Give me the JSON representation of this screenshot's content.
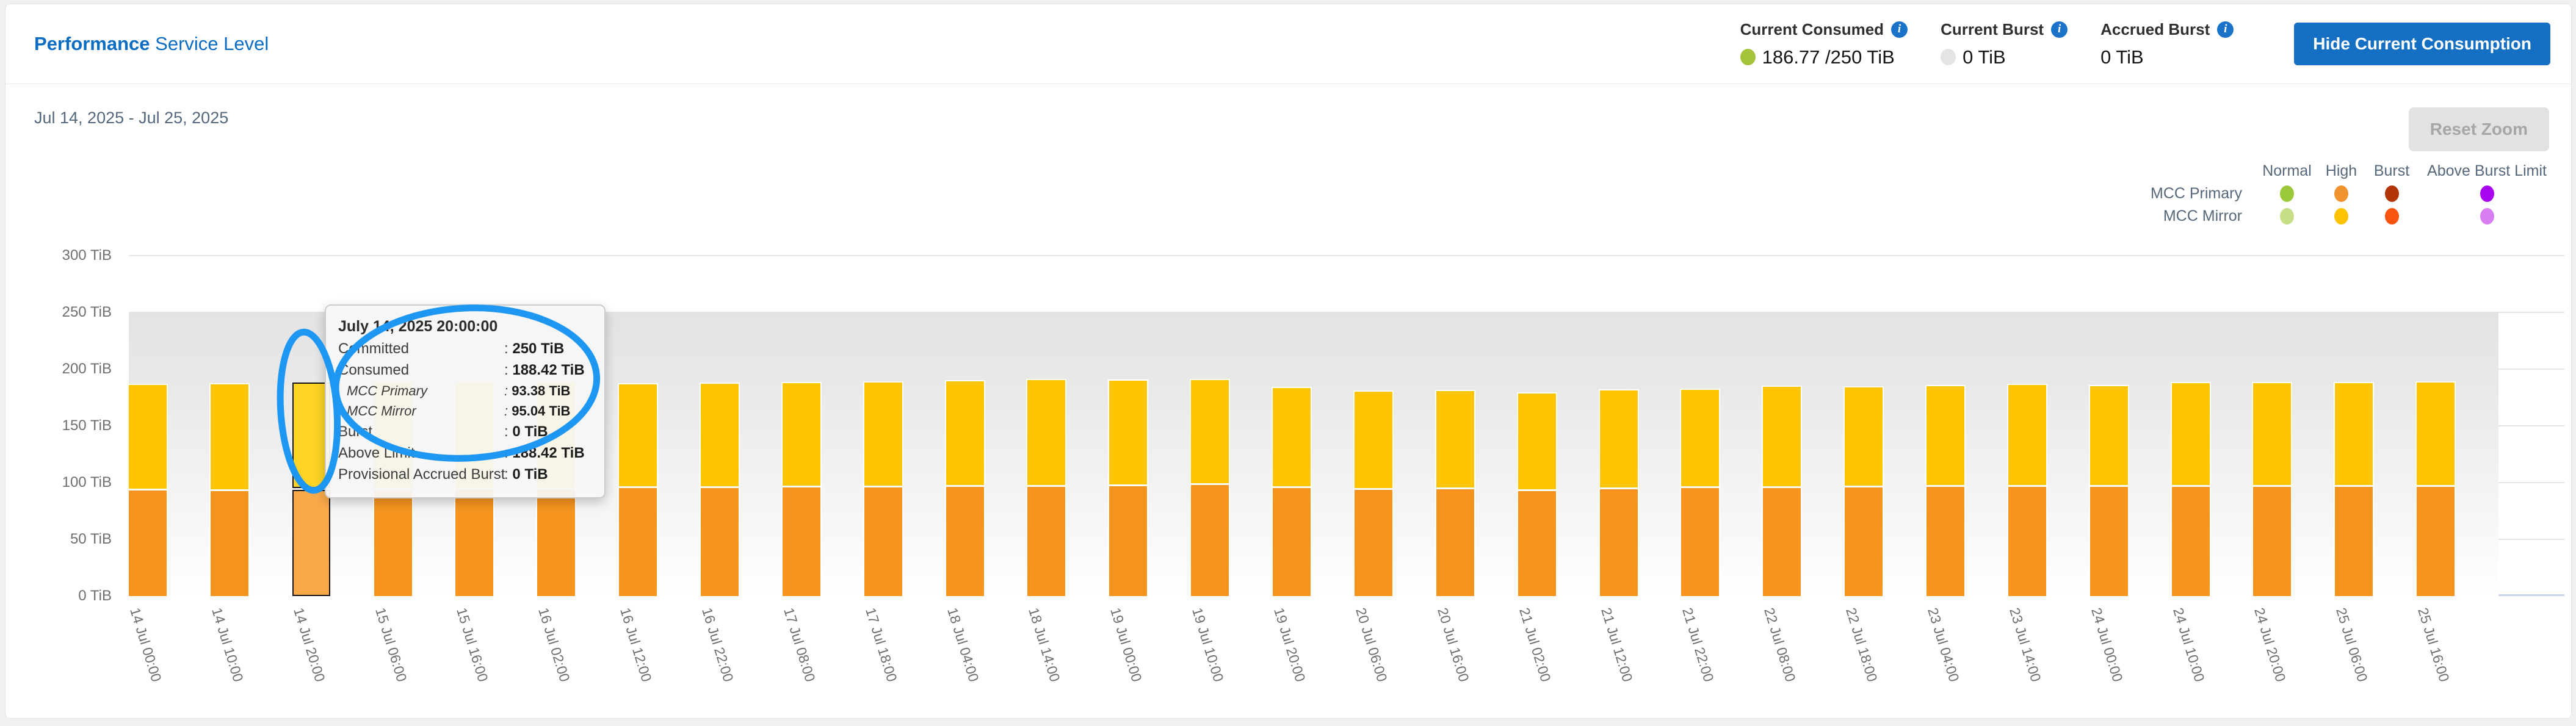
{
  "header": {
    "title_bold": "Performance",
    "title_rest": "Service Level",
    "stats": [
      {
        "label": "Current Consumed",
        "info_icon": "i",
        "dot_color": "#a4c33a",
        "value": "186.77 /250 TiB"
      },
      {
        "label": "Current Burst",
        "info_icon": "i",
        "dot_color": "#e4e4e4",
        "value": "0 TiB"
      },
      {
        "label": "Accrued Burst",
        "info_icon": "i",
        "dot_color": null,
        "value": "0 TiB"
      }
    ],
    "button_label": "Hide Current Consumption"
  },
  "chart": {
    "date_range": "Jul 14, 2025 - Jul 25, 2025",
    "reset_zoom_label": "Reset Zoom"
  },
  "chart_data": {
    "type": "bar",
    "stacked": true,
    "title": "Performance Service Level consumption over time",
    "y_axis": {
      "unit": "TiB",
      "min": 0,
      "max": 300,
      "step": 50,
      "tick_labels": [
        "0 TiB",
        "50 TiB",
        "100 TiB",
        "150 TiB",
        "200 TiB",
        "250 TiB",
        "300 TiB"
      ]
    },
    "committed_tib": 250,
    "categories": [
      "14 Jul 00:00",
      "14 Jul 10:00",
      "14 Jul 20:00",
      "15 Jul 06:00",
      "15 Jul 16:00",
      "16 Jul 02:00",
      "16 Jul 12:00",
      "16 Jul 22:00",
      "17 Jul 08:00",
      "17 Jul 18:00",
      "18 Jul 04:00",
      "18 Jul 14:00",
      "19 Jul 00:00",
      "19 Jul 10:00",
      "19 Jul 20:00",
      "20 Jul 06:00",
      "20 Jul 16:00",
      "21 Jul 02:00",
      "21 Jul 12:00",
      "21 Jul 22:00",
      "22 Jul 08:00",
      "22 Jul 18:00",
      "23 Jul 04:00",
      "23 Jul 14:00",
      "24 Jul 00:00",
      "24 Jul 10:00",
      "24 Jul 20:00",
      "25 Jul 06:00",
      "25 Jul 16:00"
    ],
    "series": [
      {
        "name": "MCC Primary",
        "state": "High",
        "color": "#f6941f",
        "values": [
          92.8,
          92.4,
          93.38,
          93.6,
          94.0,
          94.3,
          95.2,
          95.4,
          95.7,
          95.8,
          96.0,
          96.4,
          96.6,
          97.8,
          95.2,
          93.7,
          93.9,
          92.5,
          93.9,
          95.2,
          95.0,
          95.7,
          96.2,
          96.3,
          96.2,
          96.4,
          96.4,
          96.4,
          96.5
        ]
      },
      {
        "name": "MCC Mirror",
        "state": "High",
        "color": "#fdc402",
        "values": [
          93.4,
          94.4,
          95.04,
          94.6,
          94.4,
          94.2,
          91.4,
          91.7,
          92.1,
          92.6,
          93.2,
          94.2,
          93.1,
          92.5,
          87.9,
          86.2,
          86.5,
          86.1,
          87.4,
          86.5,
          89.4,
          88.3,
          89.0,
          89.7,
          89.0,
          91.0,
          91.3,
          91.0,
          91.5
        ]
      }
    ],
    "highlighted_index": 2,
    "highlight": {
      "primary_color": "#f9a94a",
      "mirror_color": "#fdd426",
      "border_color": "#131313"
    },
    "legend": {
      "columns": [
        "Normal",
        "High",
        "Burst",
        "Above Burst Limit"
      ],
      "rows": [
        {
          "label": "MCC Primary",
          "colors": [
            "#9cc93b",
            "#f0922d",
            "#b33608",
            "#a806f0"
          ]
        },
        {
          "label": "MCC Mirror",
          "colors": [
            "#c6de85",
            "#fdc303",
            "#f85410",
            "#d97ef2"
          ]
        }
      ]
    },
    "tooltip": {
      "title": "July 14, 2025 20:00:00",
      "rows": [
        {
          "label": "Committed",
          "value": "250 TiB",
          "sub": false
        },
        {
          "label": "Consumed",
          "value": "188.42 TiB",
          "sub": false
        },
        {
          "label": "MCC Primary",
          "value": "93.38 TiB",
          "sub": true
        },
        {
          "label": "MCC Mirror",
          "value": "95.04 TiB",
          "sub": true
        },
        {
          "label": "Burst",
          "value": "0 TiB",
          "sub": false
        },
        {
          "label": "Above Limit",
          "value": "188.42 TiB",
          "sub": false
        },
        {
          "label": "Provisional Accrued Burst",
          "value": "0 TiB",
          "sub": false
        }
      ]
    },
    "annotation_color": "#1e97f2"
  }
}
